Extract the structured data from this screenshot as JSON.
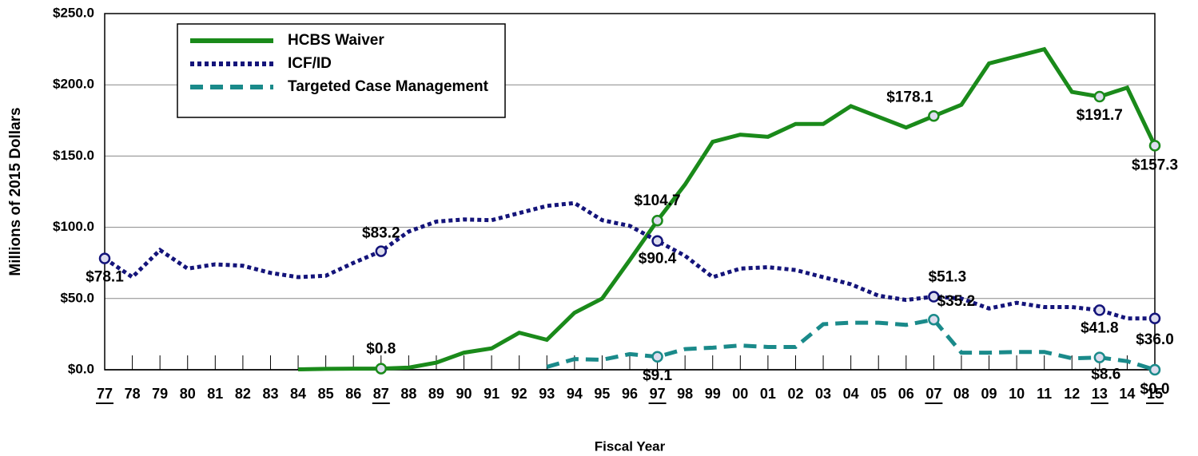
{
  "chart_data": {
    "type": "line",
    "x_label": "Fiscal Year",
    "y_label": "Millions of 2015 Dollars",
    "categories": [
      "77",
      "78",
      "79",
      "80",
      "81",
      "82",
      "83",
      "84",
      "85",
      "86",
      "87",
      "88",
      "89",
      "90",
      "91",
      "92",
      "93",
      "94",
      "95",
      "96",
      "97",
      "98",
      "99",
      "00",
      "01",
      "02",
      "03",
      "04",
      "05",
      "06",
      "07",
      "08",
      "09",
      "10",
      "11",
      "12",
      "13",
      "14",
      "15"
    ],
    "ylim": [
      0,
      250
    ],
    "yticks": [
      {
        "value": 0,
        "label": "$0.0"
      },
      {
        "value": 50,
        "label": "$50.0"
      },
      {
        "value": 100,
        "label": "$100.0"
      },
      {
        "value": 150,
        "label": "$150.0"
      },
      {
        "value": 200,
        "label": "$200.0"
      },
      {
        "value": 250,
        "label": "$250.0"
      }
    ],
    "grid": true,
    "legend": "upper left",
    "series": [
      {
        "name": "HCBS Waiver",
        "color": "#1a8a1a",
        "dash": "solid",
        "values": [
          null,
          null,
          null,
          null,
          null,
          null,
          null,
          0.3,
          0.6,
          0.8,
          0.8,
          1.5,
          5,
          12,
          15,
          26,
          21,
          40,
          50,
          77,
          104.7,
          130,
          160,
          165,
          163.5,
          172.5,
          172.5,
          185,
          177.5,
          170,
          178.1,
          186,
          215,
          220,
          225,
          195,
          191.7,
          198,
          157.3
        ],
        "value_labels": [
          null,
          null,
          null,
          null,
          null,
          null,
          null,
          null,
          null,
          null,
          "$0.8",
          null,
          null,
          null,
          null,
          null,
          null,
          null,
          null,
          null,
          "$104.7",
          null,
          null,
          null,
          null,
          null,
          null,
          null,
          null,
          null,
          "$178.1",
          null,
          null,
          null,
          null,
          null,
          "$191.7",
          null,
          "$157.3"
        ]
      },
      {
        "name": "ICF/ID",
        "color": "#14147a",
        "dash": "dotted",
        "values": [
          78.1,
          65,
          84,
          71,
          74,
          73,
          68,
          65,
          66,
          75,
          83.2,
          97,
          104,
          105.5,
          105,
          110,
          115,
          117,
          105,
          101,
          90.4,
          80,
          65,
          71,
          72,
          70,
          65,
          60,
          52,
          49,
          51.3,
          50,
          43,
          47,
          44,
          44,
          41.8,
          36,
          36.0
        ],
        "value_labels": [
          "$78.1",
          null,
          null,
          null,
          null,
          null,
          null,
          null,
          null,
          null,
          "$83.2",
          null,
          null,
          null,
          null,
          null,
          null,
          null,
          null,
          null,
          "$90.4",
          null,
          null,
          null,
          null,
          null,
          null,
          null,
          null,
          null,
          "$51.3",
          null,
          null,
          null,
          null,
          null,
          "$41.8",
          null,
          "$36.0"
        ]
      },
      {
        "name": "Targeted Case Management",
        "color": "#1a8a8a",
        "dash": "dashed",
        "values": [
          null,
          null,
          null,
          null,
          null,
          null,
          null,
          null,
          null,
          null,
          null,
          null,
          null,
          null,
          null,
          null,
          2,
          7.5,
          7,
          11,
          9.1,
          14.5,
          15.5,
          17,
          16,
          16,
          32,
          33,
          33,
          31.5,
          35.2,
          12,
          12,
          12.5,
          12.5,
          8,
          8.6,
          6,
          0.0
        ],
        "value_labels": [
          null,
          null,
          null,
          null,
          null,
          null,
          null,
          null,
          null,
          null,
          null,
          null,
          null,
          null,
          null,
          null,
          null,
          null,
          null,
          null,
          "$9.1",
          null,
          null,
          null,
          null,
          null,
          null,
          null,
          null,
          null,
          "$35.2",
          null,
          null,
          null,
          null,
          null,
          "$8.6",
          null,
          "$0.0"
        ]
      }
    ]
  }
}
